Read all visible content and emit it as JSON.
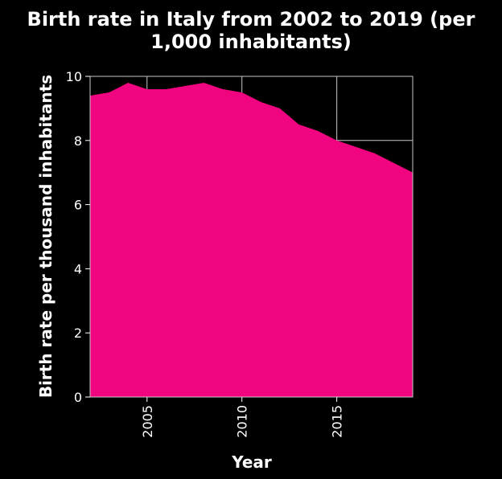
{
  "chart_data": {
    "type": "area",
    "title_line1": "Birth rate in Italy from 2002 to 2019 (per",
    "title_line2": "1,000 inhabitants)",
    "xlabel": "Year",
    "ylabel": "Birth rate per thousand inhabitants",
    "x": [
      2002,
      2003,
      2004,
      2005,
      2006,
      2007,
      2008,
      2009,
      2010,
      2011,
      2012,
      2013,
      2014,
      2015,
      2016,
      2017,
      2018,
      2019
    ],
    "values": [
      9.4,
      9.5,
      9.8,
      9.6,
      9.6,
      9.7,
      9.8,
      9.6,
      9.5,
      9.2,
      9.0,
      8.5,
      8.3,
      8.0,
      7.8,
      7.6,
      7.3,
      7.0
    ],
    "xlim": [
      2002,
      2019
    ],
    "ylim": [
      0,
      10
    ],
    "xticks": [
      2005,
      2010,
      2015
    ],
    "yticks": [
      0,
      2,
      4,
      6,
      8,
      10
    ],
    "grid": true,
    "colors": {
      "area": "#f0047f",
      "background": "#000000",
      "grid": "#c8c8c8",
      "text": "#ffffff"
    }
  }
}
